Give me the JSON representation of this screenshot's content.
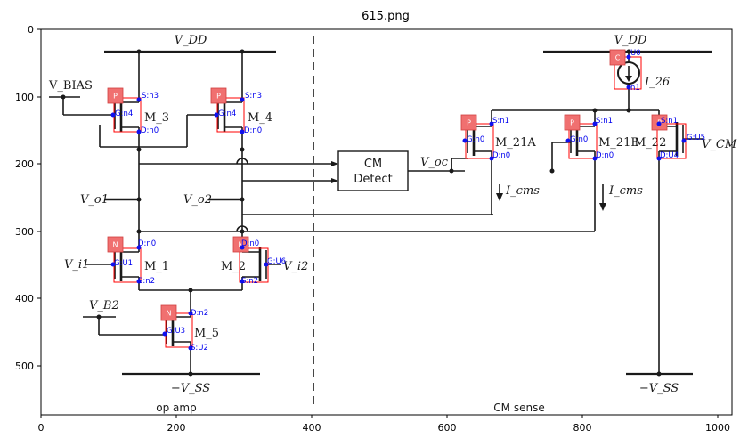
{
  "figure": {
    "title": "615.png",
    "x_ticks": [
      "0",
      "200",
      "400",
      "600",
      "800",
      "1000"
    ],
    "y_ticks": [
      "0",
      "100",
      "200",
      "300",
      "400",
      "500"
    ]
  },
  "circuit": {
    "labels": {
      "vdd_left": "V_DD",
      "vdd_right": "V_DD",
      "vbias": "V_BIAS",
      "m3": "M_3",
      "m4": "M_4",
      "m1": "M_1",
      "m2": "M_2",
      "m5": "M_5",
      "m21a": "M_21A",
      "m21b": "M_21B",
      "m22": "M_22",
      "i26": "I_26",
      "vo1": "V_o1",
      "vo2": "V_o2",
      "vi1": "V_i1",
      "vi2": "V_i2",
      "vb2": "V_B2",
      "vss_left": "−V_SS",
      "vss_right": "−V_SS",
      "voc": "V_oc",
      "icms_a": "I_cms",
      "icms_b": "I_cms",
      "vcm": "V_CM",
      "cm_detect_line1": "CM",
      "cm_detect_line2": "Detect",
      "section_left": "op amp",
      "section_right": "CM sense"
    }
  },
  "annotations": {
    "components": [
      {
        "id": "m3",
        "type": "P",
        "pins": [
          "S:n3",
          "G:n4",
          "D:n0"
        ]
      },
      {
        "id": "m4",
        "type": "P",
        "pins": [
          "S:n3",
          "G:n4",
          "D:n0"
        ]
      },
      {
        "id": "m1",
        "type": "N",
        "pins": [
          "D:n0",
          "G:U1",
          "S:n2"
        ]
      },
      {
        "id": "m2",
        "type": "N",
        "pins": [
          "D:n0",
          "G:U6",
          "S:n2"
        ]
      },
      {
        "id": "m5",
        "type": "N",
        "pins": [
          "D:n2",
          "G:U3",
          "S:U2"
        ]
      },
      {
        "id": "m21a",
        "type": "P",
        "pins": [
          "S:n1",
          "G:n0",
          "D:n0"
        ]
      },
      {
        "id": "m21b",
        "type": "P",
        "pins": [
          "S:n1",
          "G:n0",
          "D:n0"
        ]
      },
      {
        "id": "m22",
        "type": "P",
        "pins": [
          "S:n1",
          "G:U5",
          "D:U4"
        ]
      },
      {
        "id": "i26",
        "type": "C",
        "pins": [
          "U0",
          "n1"
        ]
      }
    ]
  }
}
